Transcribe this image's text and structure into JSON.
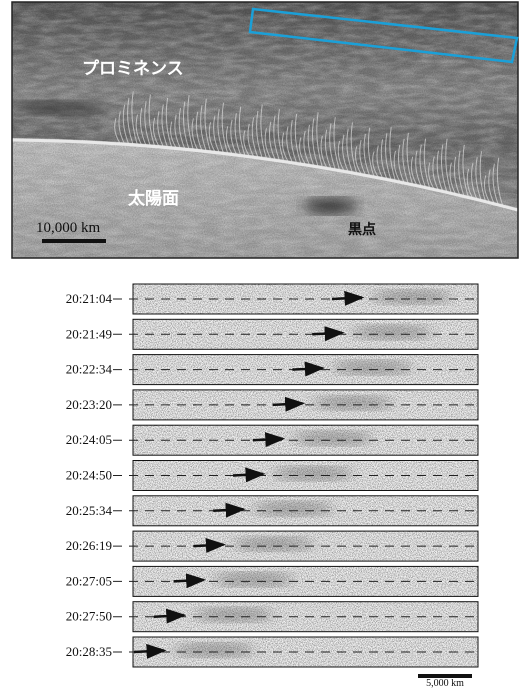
{
  "image": {
    "labels": {
      "prominence": "プロミネンス",
      "surface": "太陽面",
      "sunspot": "黒点"
    },
    "scale_bar": "10,000 km"
  },
  "strips": {
    "times": [
      "20:21:04",
      "20:21:49",
      "20:22:34",
      "20:23:20",
      "20:24:05",
      "20:24:50",
      "20:25:34",
      "20:26:19",
      "20:27:05",
      "20:27:50",
      "20:28:35"
    ],
    "scale_bar": "5,000 km"
  }
}
